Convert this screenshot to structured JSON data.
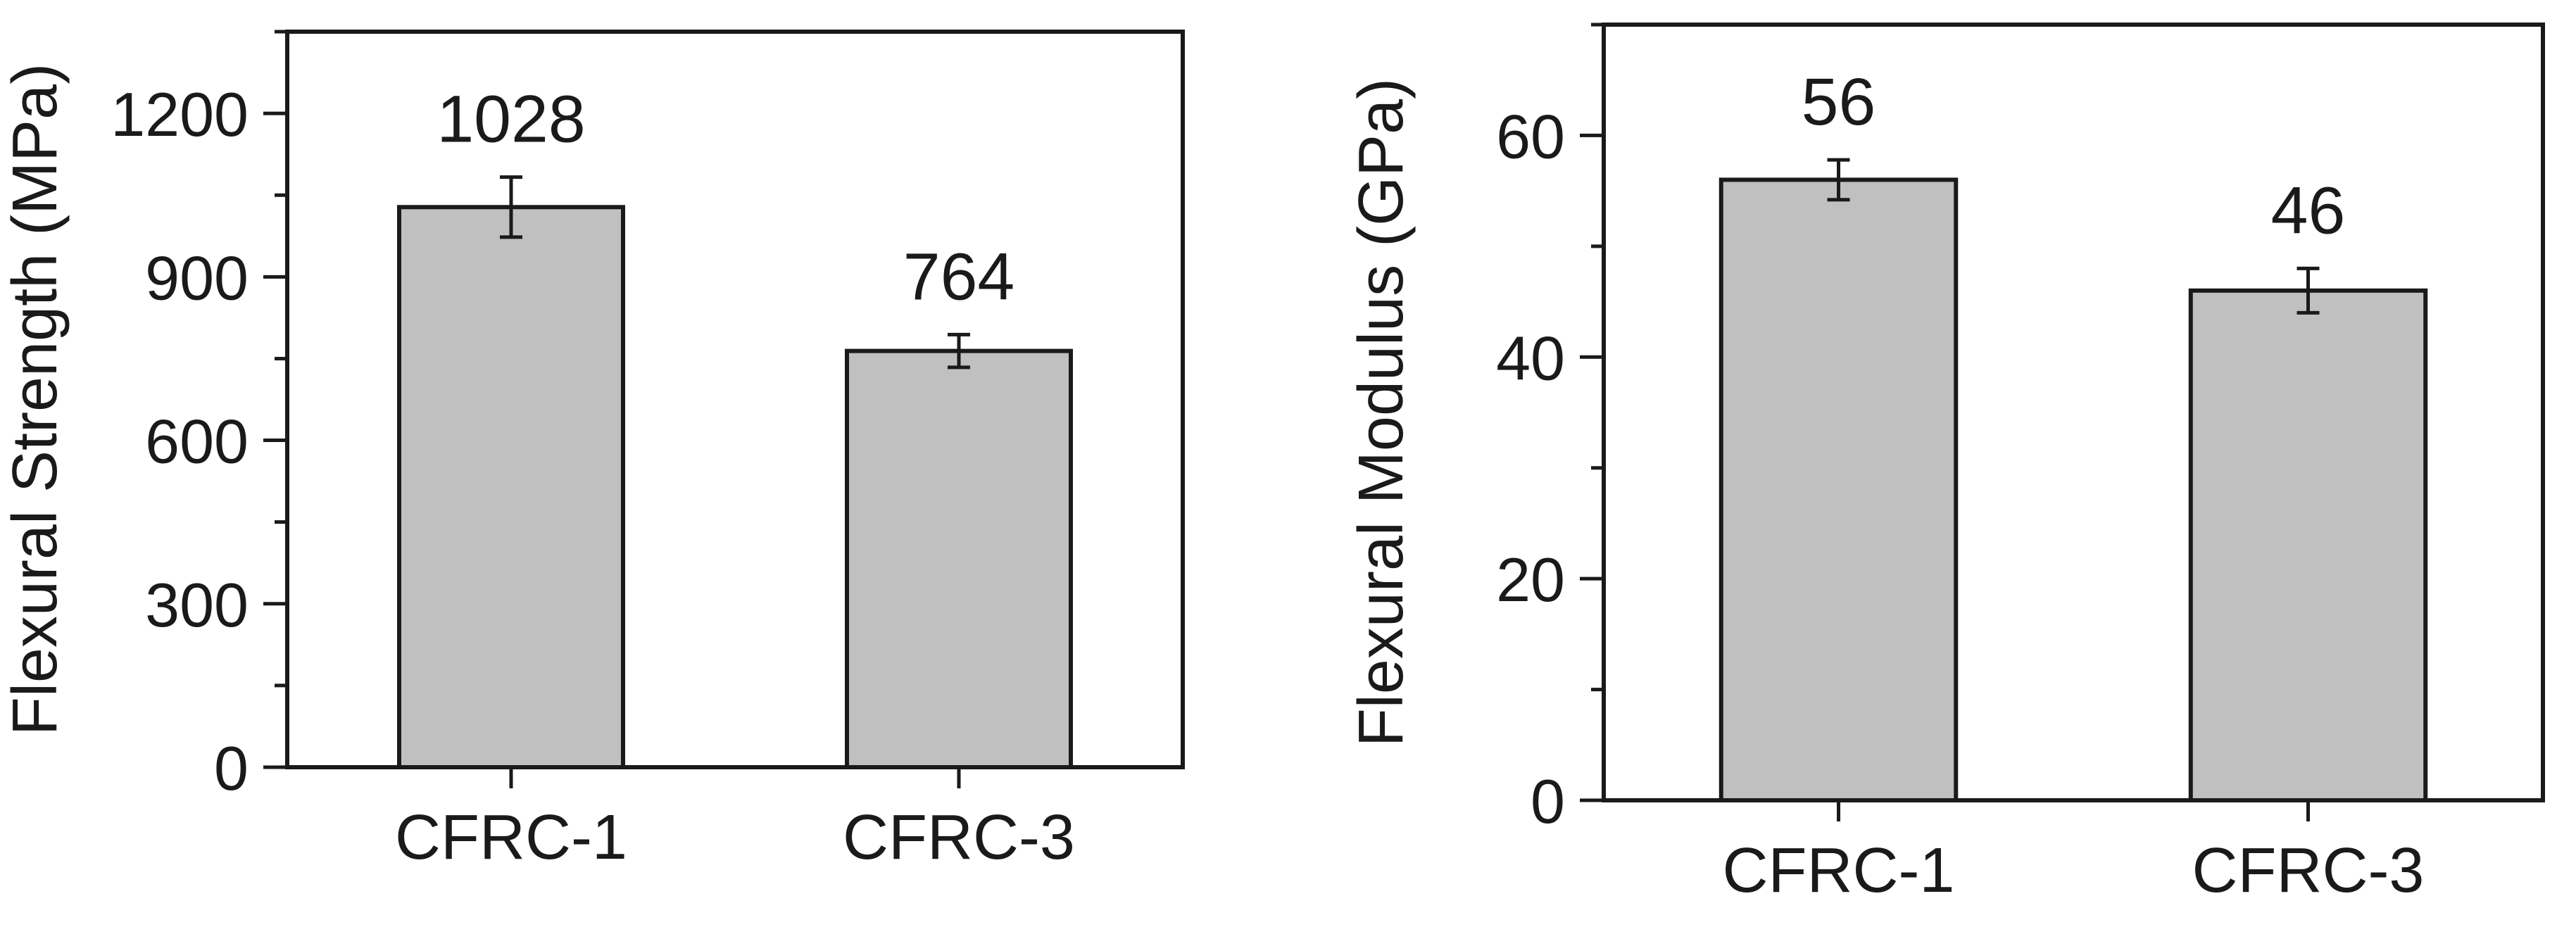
{
  "chart_data": [
    {
      "type": "bar",
      "categories": [
        "CFRC-1",
        "CFRC-3"
      ],
      "values": [
        1028,
        764
      ],
      "errors": [
        55,
        30
      ],
      "data_labels": [
        "1028",
        "764"
      ],
      "title": "",
      "xlabel": "",
      "ylabel": "Flexural Strength (MPa)",
      "ylim": [
        0,
        1350
      ],
      "major_ticks": [
        0,
        300,
        600,
        900,
        1200
      ],
      "minor_step": 150,
      "grid": false,
      "bar_color": "#c0c0c0"
    },
    {
      "type": "bar",
      "categories": [
        "CFRC-1",
        "CFRC-3"
      ],
      "values": [
        56,
        46
      ],
      "errors": [
        1.8,
        2.0
      ],
      "data_labels": [
        "56",
        "46"
      ],
      "title": "",
      "xlabel": "",
      "ylabel": "Flexural Modulus (GPa)",
      "ylim": [
        0,
        70
      ],
      "major_ticks": [
        0,
        20,
        40,
        60
      ],
      "minor_step": 10,
      "grid": false,
      "bar_color": "#c0c0c0"
    }
  ]
}
